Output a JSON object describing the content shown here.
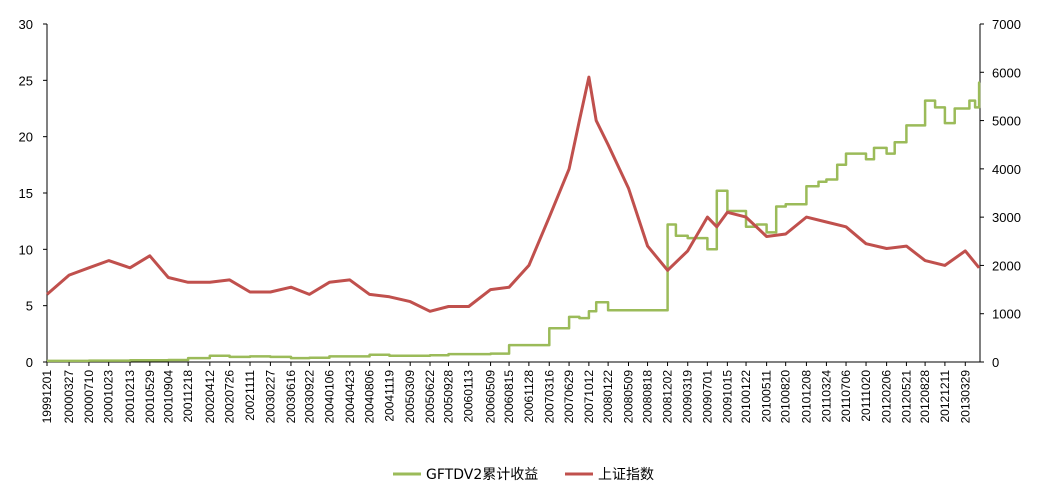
{
  "chart_data": {
    "type": "line",
    "x_ticks": [
      "19991201",
      "20000327",
      "20000710",
      "20001023",
      "20010213",
      "20010529",
      "20010904",
      "20011218",
      "20020412",
      "20020726",
      "20021111",
      "20030227",
      "20030616",
      "20030922",
      "20040106",
      "20040423",
      "20040806",
      "20041119",
      "20050309",
      "20050622",
      "20050928",
      "20060113",
      "20060509",
      "20060815",
      "20061128",
      "20070316",
      "20070629",
      "20071012",
      "20080122",
      "20080509",
      "20080818",
      "20081202",
      "20090319",
      "20090701",
      "20091015",
      "20100122",
      "20100511",
      "20100820",
      "20101208",
      "20110324",
      "20110706",
      "20111020",
      "20120206",
      "20120521",
      "20120828",
      "20121211",
      "20130329"
    ],
    "left_axis": {
      "ylim": [
        0,
        30
      ],
      "ticks": [
        0,
        5,
        10,
        15,
        20,
        25,
        30
      ]
    },
    "right_axis": {
      "ylim": [
        0,
        7000
      ],
      "ticks": [
        0,
        1000,
        2000,
        3000,
        4000,
        5000,
        6000,
        7000
      ]
    },
    "grid": false,
    "legend_position": "bottom",
    "series": [
      {
        "name": "GFTDV2累计收益",
        "axis": "left",
        "color": "#9BBB59",
        "step": true,
        "points": [
          [
            "19991201",
            0.1
          ],
          [
            "20000710",
            0.12
          ],
          [
            "20010213",
            0.15
          ],
          [
            "20010904",
            0.18
          ],
          [
            "20011218",
            0.35
          ],
          [
            "20020412",
            0.55
          ],
          [
            "20020726",
            0.45
          ],
          [
            "20021111",
            0.5
          ],
          [
            "20030227",
            0.45
          ],
          [
            "20030616",
            0.35
          ],
          [
            "20030922",
            0.38
          ],
          [
            "20040106",
            0.5
          ],
          [
            "20040806",
            0.65
          ],
          [
            "20041119",
            0.55
          ],
          [
            "20050309",
            0.55
          ],
          [
            "20050622",
            0.6
          ],
          [
            "20050928",
            0.7
          ],
          [
            "20060509",
            0.75
          ],
          [
            "20060815",
            1.5
          ],
          [
            "20070316",
            3.0
          ],
          [
            "20070629",
            4.0
          ],
          [
            "20070823",
            3.9
          ],
          [
            "20071012",
            4.5
          ],
          [
            "20071120",
            5.3
          ],
          [
            "20080122",
            4.6
          ],
          [
            "20080509",
            4.6
          ],
          [
            "20081202",
            12.2
          ],
          [
            "20090115",
            11.2
          ],
          [
            "20090319",
            11.0
          ],
          [
            "20090701",
            10.0
          ],
          [
            "20090820",
            15.2
          ],
          [
            "20091015",
            13.4
          ],
          [
            "20100122",
            12.0
          ],
          [
            "20100320",
            12.2
          ],
          [
            "20100511",
            11.5
          ],
          [
            "20100701",
            13.8
          ],
          [
            "20100820",
            14.0
          ],
          [
            "20101208",
            15.6
          ],
          [
            "20110210",
            16.0
          ],
          [
            "20110324",
            16.2
          ],
          [
            "20110520",
            17.5
          ],
          [
            "20110706",
            18.5
          ],
          [
            "20111020",
            18.0
          ],
          [
            "20111201",
            19.0
          ],
          [
            "20120206",
            18.5
          ],
          [
            "20120320",
            19.5
          ],
          [
            "20120521",
            21.0
          ],
          [
            "20120828",
            23.2
          ],
          [
            "20121020",
            22.6
          ],
          [
            "20121211",
            21.2
          ],
          [
            "20130201",
            22.5
          ],
          [
            "20130420",
            23.2
          ],
          [
            "20130520",
            22.6
          ],
          [
            "20130610",
            24.8
          ]
        ]
      },
      {
        "name": "上证指数",
        "axis": "right",
        "color": "#C0504D",
        "step": false,
        "points": [
          [
            "19991201",
            1400
          ],
          [
            "20000327",
            1800
          ],
          [
            "20000710",
            1950
          ],
          [
            "20001023",
            2100
          ],
          [
            "20010213",
            1950
          ],
          [
            "20010529",
            2200
          ],
          [
            "20010904",
            1750
          ],
          [
            "20011218",
            1650
          ],
          [
            "20020412",
            1650
          ],
          [
            "20020726",
            1700
          ],
          [
            "20021111",
            1450
          ],
          [
            "20030227",
            1450
          ],
          [
            "20030616",
            1550
          ],
          [
            "20030922",
            1400
          ],
          [
            "20040106",
            1650
          ],
          [
            "20040423",
            1700
          ],
          [
            "20040806",
            1400
          ],
          [
            "20041119",
            1350
          ],
          [
            "20050309",
            1250
          ],
          [
            "20050622",
            1050
          ],
          [
            "20050928",
            1150
          ],
          [
            "20060113",
            1150
          ],
          [
            "20060509",
            1500
          ],
          [
            "20060815",
            1550
          ],
          [
            "20061128",
            2000
          ],
          [
            "20070316",
            3000
          ],
          [
            "20070629",
            4000
          ],
          [
            "20070823",
            5000
          ],
          [
            "20071012",
            5900
          ],
          [
            "20071120",
            5000
          ],
          [
            "20080122",
            4500
          ],
          [
            "20080509",
            3600
          ],
          [
            "20080818",
            2400
          ],
          [
            "20081202",
            1900
          ],
          [
            "20090319",
            2300
          ],
          [
            "20090701",
            3000
          ],
          [
            "20090820",
            2800
          ],
          [
            "20091015",
            3100
          ],
          [
            "20100122",
            3000
          ],
          [
            "20100511",
            2600
          ],
          [
            "20100820",
            2650
          ],
          [
            "20101208",
            3000
          ],
          [
            "20110324",
            2900
          ],
          [
            "20110706",
            2800
          ],
          [
            "20111020",
            2450
          ],
          [
            "20120206",
            2350
          ],
          [
            "20120521",
            2400
          ],
          [
            "20120828",
            2100
          ],
          [
            "20121211",
            2000
          ],
          [
            "20130329",
            2300
          ],
          [
            "20130610",
            1950
          ]
        ]
      }
    ]
  }
}
